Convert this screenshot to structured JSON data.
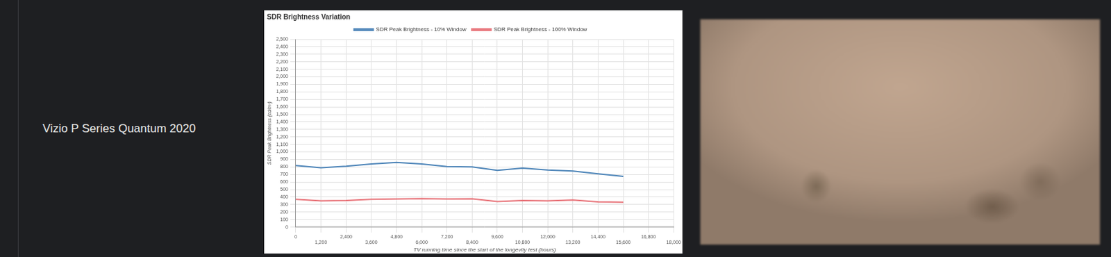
{
  "row_label": "Vizio P Series Quantum 2020",
  "chart_data": {
    "type": "line",
    "title": "SDR Brightness Variation",
    "x_label": "TV running time since the start of the longevity test (hours)",
    "y_label": "SDR Peak Brightness (cd/m²)",
    "x": [
      0,
      1200,
      2400,
      3600,
      4800,
      6000,
      7200,
      8400,
      9600,
      10800,
      12000,
      13200,
      14400,
      15600
    ],
    "series": [
      {
        "name": "SDR Peak Brightness - 10% Window",
        "color": "#4f86b9",
        "values": [
          820,
          790,
          810,
          840,
          860,
          840,
          805,
          800,
          755,
          785,
          760,
          745,
          710,
          675
        ]
      },
      {
        "name": "SDR Peak Brightness - 100% Window",
        "color": "#e8747a",
        "values": [
          370,
          350,
          355,
          370,
          375,
          380,
          375,
          378,
          340,
          355,
          350,
          360,
          335,
          330
        ]
      }
    ],
    "xlim": [
      0,
      18000
    ],
    "xticks": [
      0,
      {
        "value": 1200,
        "label": "1,200"
      },
      {
        "value": 2400,
        "label": "2,400"
      },
      {
        "value": 3600,
        "label": "3,600"
      },
      {
        "value": 4800,
        "label": "4,800"
      },
      {
        "value": 6000,
        "label": "6,000"
      },
      {
        "value": 7200,
        "label": "7,200"
      },
      {
        "value": 8400,
        "label": "8,400"
      },
      {
        "value": 9600,
        "label": "9,600"
      },
      {
        "value": 10800,
        "label": "10,800"
      },
      {
        "value": 12000,
        "label": "12,000"
      },
      {
        "value": 13200,
        "label": "13,200"
      },
      {
        "value": 14400,
        "label": "14,400"
      },
      {
        "value": 15600,
        "label": "15,600"
      },
      {
        "value": 16800,
        "label": "16,800"
      },
      {
        "value": 18000,
        "label": "18,000"
      }
    ],
    "ylim": [
      0,
      2500
    ],
    "yticks": [
      0,
      100,
      200,
      300,
      400,
      500,
      600,
      700,
      800,
      900,
      {
        "value": 1000,
        "label": "1,000"
      },
      {
        "value": 1100,
        "label": "1,100"
      },
      {
        "value": 1200,
        "label": "1,200"
      },
      {
        "value": 1300,
        "label": "1,300"
      },
      {
        "value": 1400,
        "label": "1,400"
      },
      {
        "value": 1500,
        "label": "1,500"
      },
      {
        "value": 1600,
        "label": "1,600"
      },
      {
        "value": 1700,
        "label": "1,700"
      },
      {
        "value": 1800,
        "label": "1,800"
      },
      {
        "value": 1900,
        "label": "1,900"
      },
      {
        "value": 2000,
        "label": "2,000"
      },
      {
        "value": 2100,
        "label": "2,100"
      },
      {
        "value": 2200,
        "label": "2,200"
      },
      {
        "value": 2300,
        "label": "2,300"
      },
      {
        "value": 2400,
        "label": "2,400"
      },
      {
        "value": 2500,
        "label": "2,500"
      }
    ],
    "grid": true,
    "legend": "top",
    "marker": "none"
  }
}
